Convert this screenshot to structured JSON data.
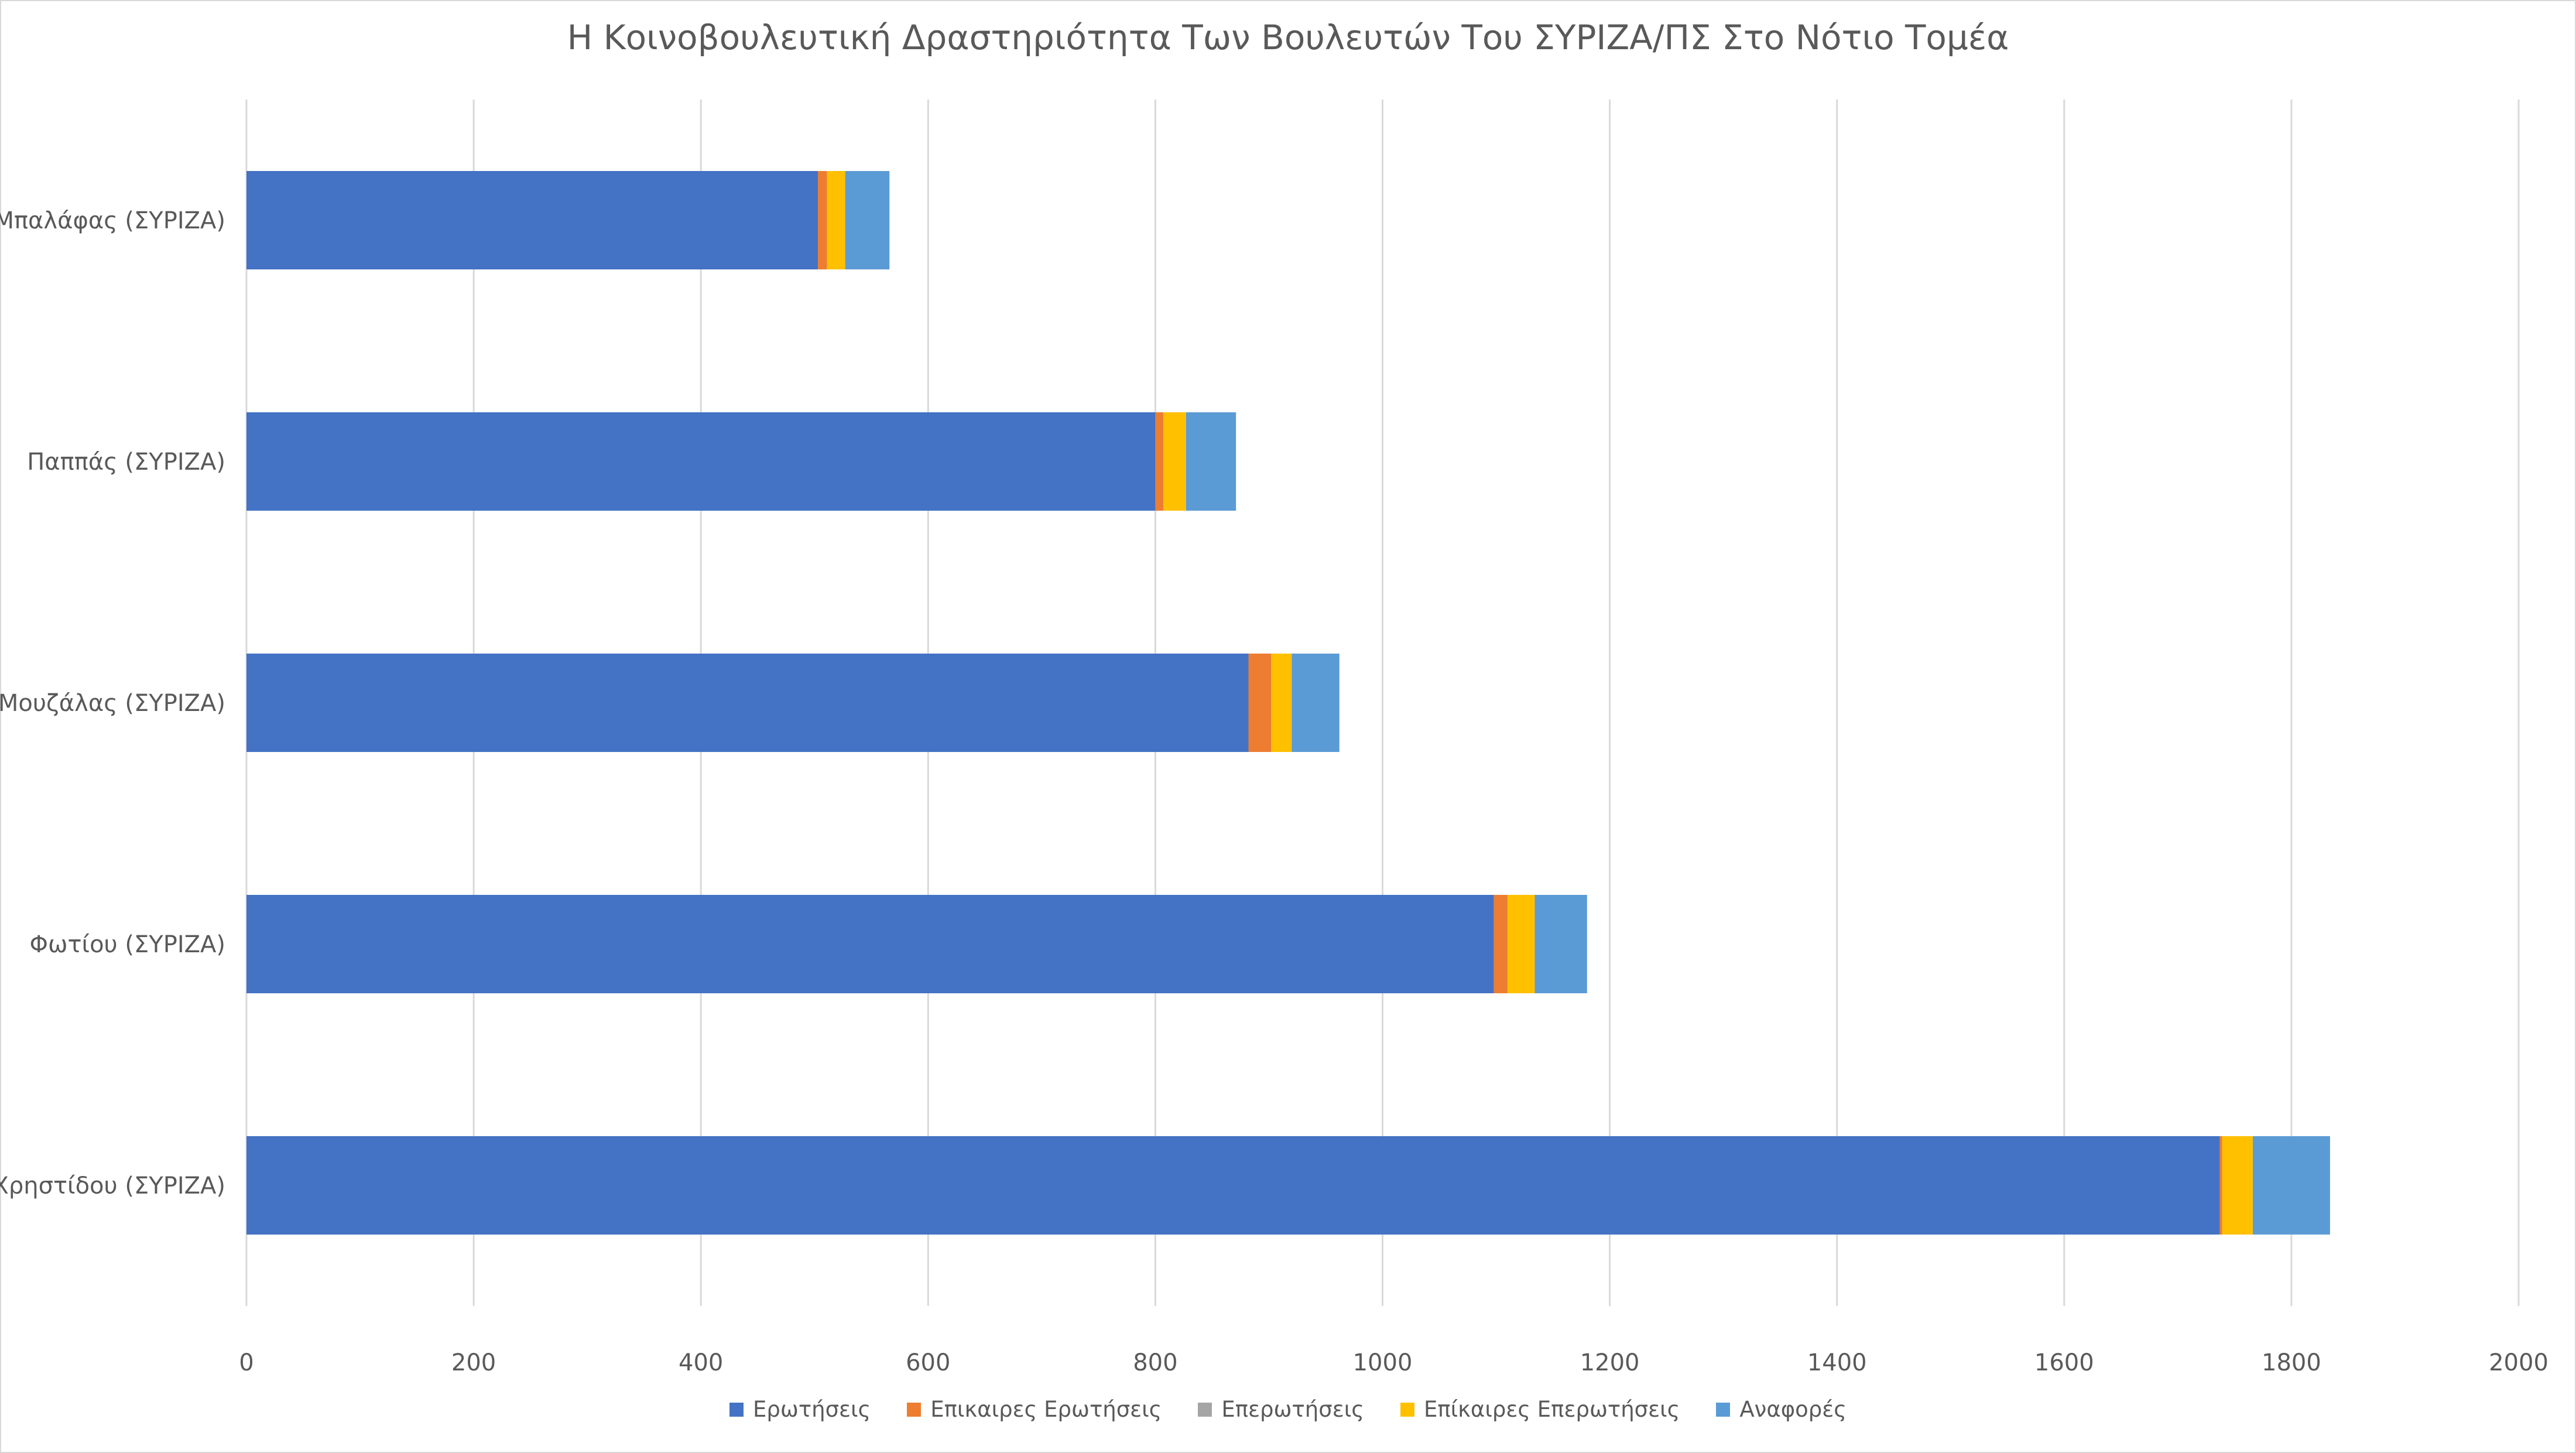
{
  "chart_data": {
    "type": "bar",
    "orientation": "horizontal",
    "stacked": true,
    "title": "Η Κοινοβουλευτική Δραστηριότητα Των Βουλευτών Του ΣΥΡΙΖΑ/ΠΣ Στο Νότιο Τομέα",
    "categories": [
      "Μπαλάφας (ΣΥΡΙΖΑ)",
      "Παππάς (ΣΥΡΙΖΑ)",
      "Μουζάλας (ΣΥΡΙΖΑ)",
      "Φωτίου (ΣΥΡΙΖΑ)",
      "Χρηστίδου (ΣΥΡΙΖΑ)"
    ],
    "series": [
      {
        "name": "Ερωτήσεις",
        "color": "#4472c4",
        "values": [
          503,
          800,
          882,
          1098,
          1737
        ]
      },
      {
        "name": "Επικαιρες Ερωτήσεις",
        "color": "#ed7d31",
        "values": [
          8,
          7,
          20,
          12,
          2
        ]
      },
      {
        "name": "Επερωτήσεις",
        "color": "#a5a5a5",
        "values": [
          0,
          0,
          0,
          0,
          0
        ]
      },
      {
        "name": "Επίκαιρες Επερωτήσεις",
        "color": "#ffc000",
        "values": [
          16,
          20,
          18,
          24,
          27
        ]
      },
      {
        "name": "Αναφορές",
        "color": "#5b9bd5",
        "values": [
          39,
          44,
          42,
          46,
          68
        ]
      }
    ],
    "xlim": [
      0,
      2000
    ],
    "xticks": [
      0,
      200,
      400,
      600,
      800,
      1000,
      1200,
      1400,
      1600,
      1800,
      2000
    ],
    "grid": true,
    "legend": "bottom"
  }
}
